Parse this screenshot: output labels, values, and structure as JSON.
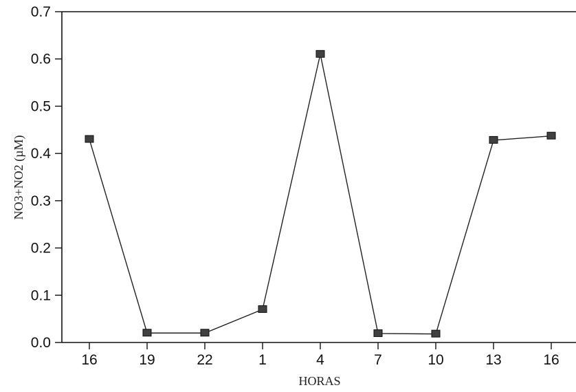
{
  "chart_data": {
    "type": "line",
    "title": "",
    "xlabel": "HORAS",
    "ylabel": "NO3+NO2 (µM)",
    "categories": [
      "16",
      "19",
      "22",
      "1",
      "4",
      "7",
      "10",
      "13",
      "16"
    ],
    "series": [
      {
        "values": [
          0.43,
          0.02,
          0.02,
          0.07,
          0.61,
          0.019,
          0.018,
          0.428,
          0.437
        ]
      }
    ],
    "ylim": [
      0.0,
      0.7
    ],
    "yticks": [
      "0.0",
      "0.1",
      "0.2",
      "0.3",
      "0.4",
      "0.5",
      "0.6",
      "0.7"
    ],
    "grid": false,
    "marker": "square",
    "colors": {
      "line": "#222222",
      "marker": "#404040",
      "axis": "#111111"
    }
  }
}
